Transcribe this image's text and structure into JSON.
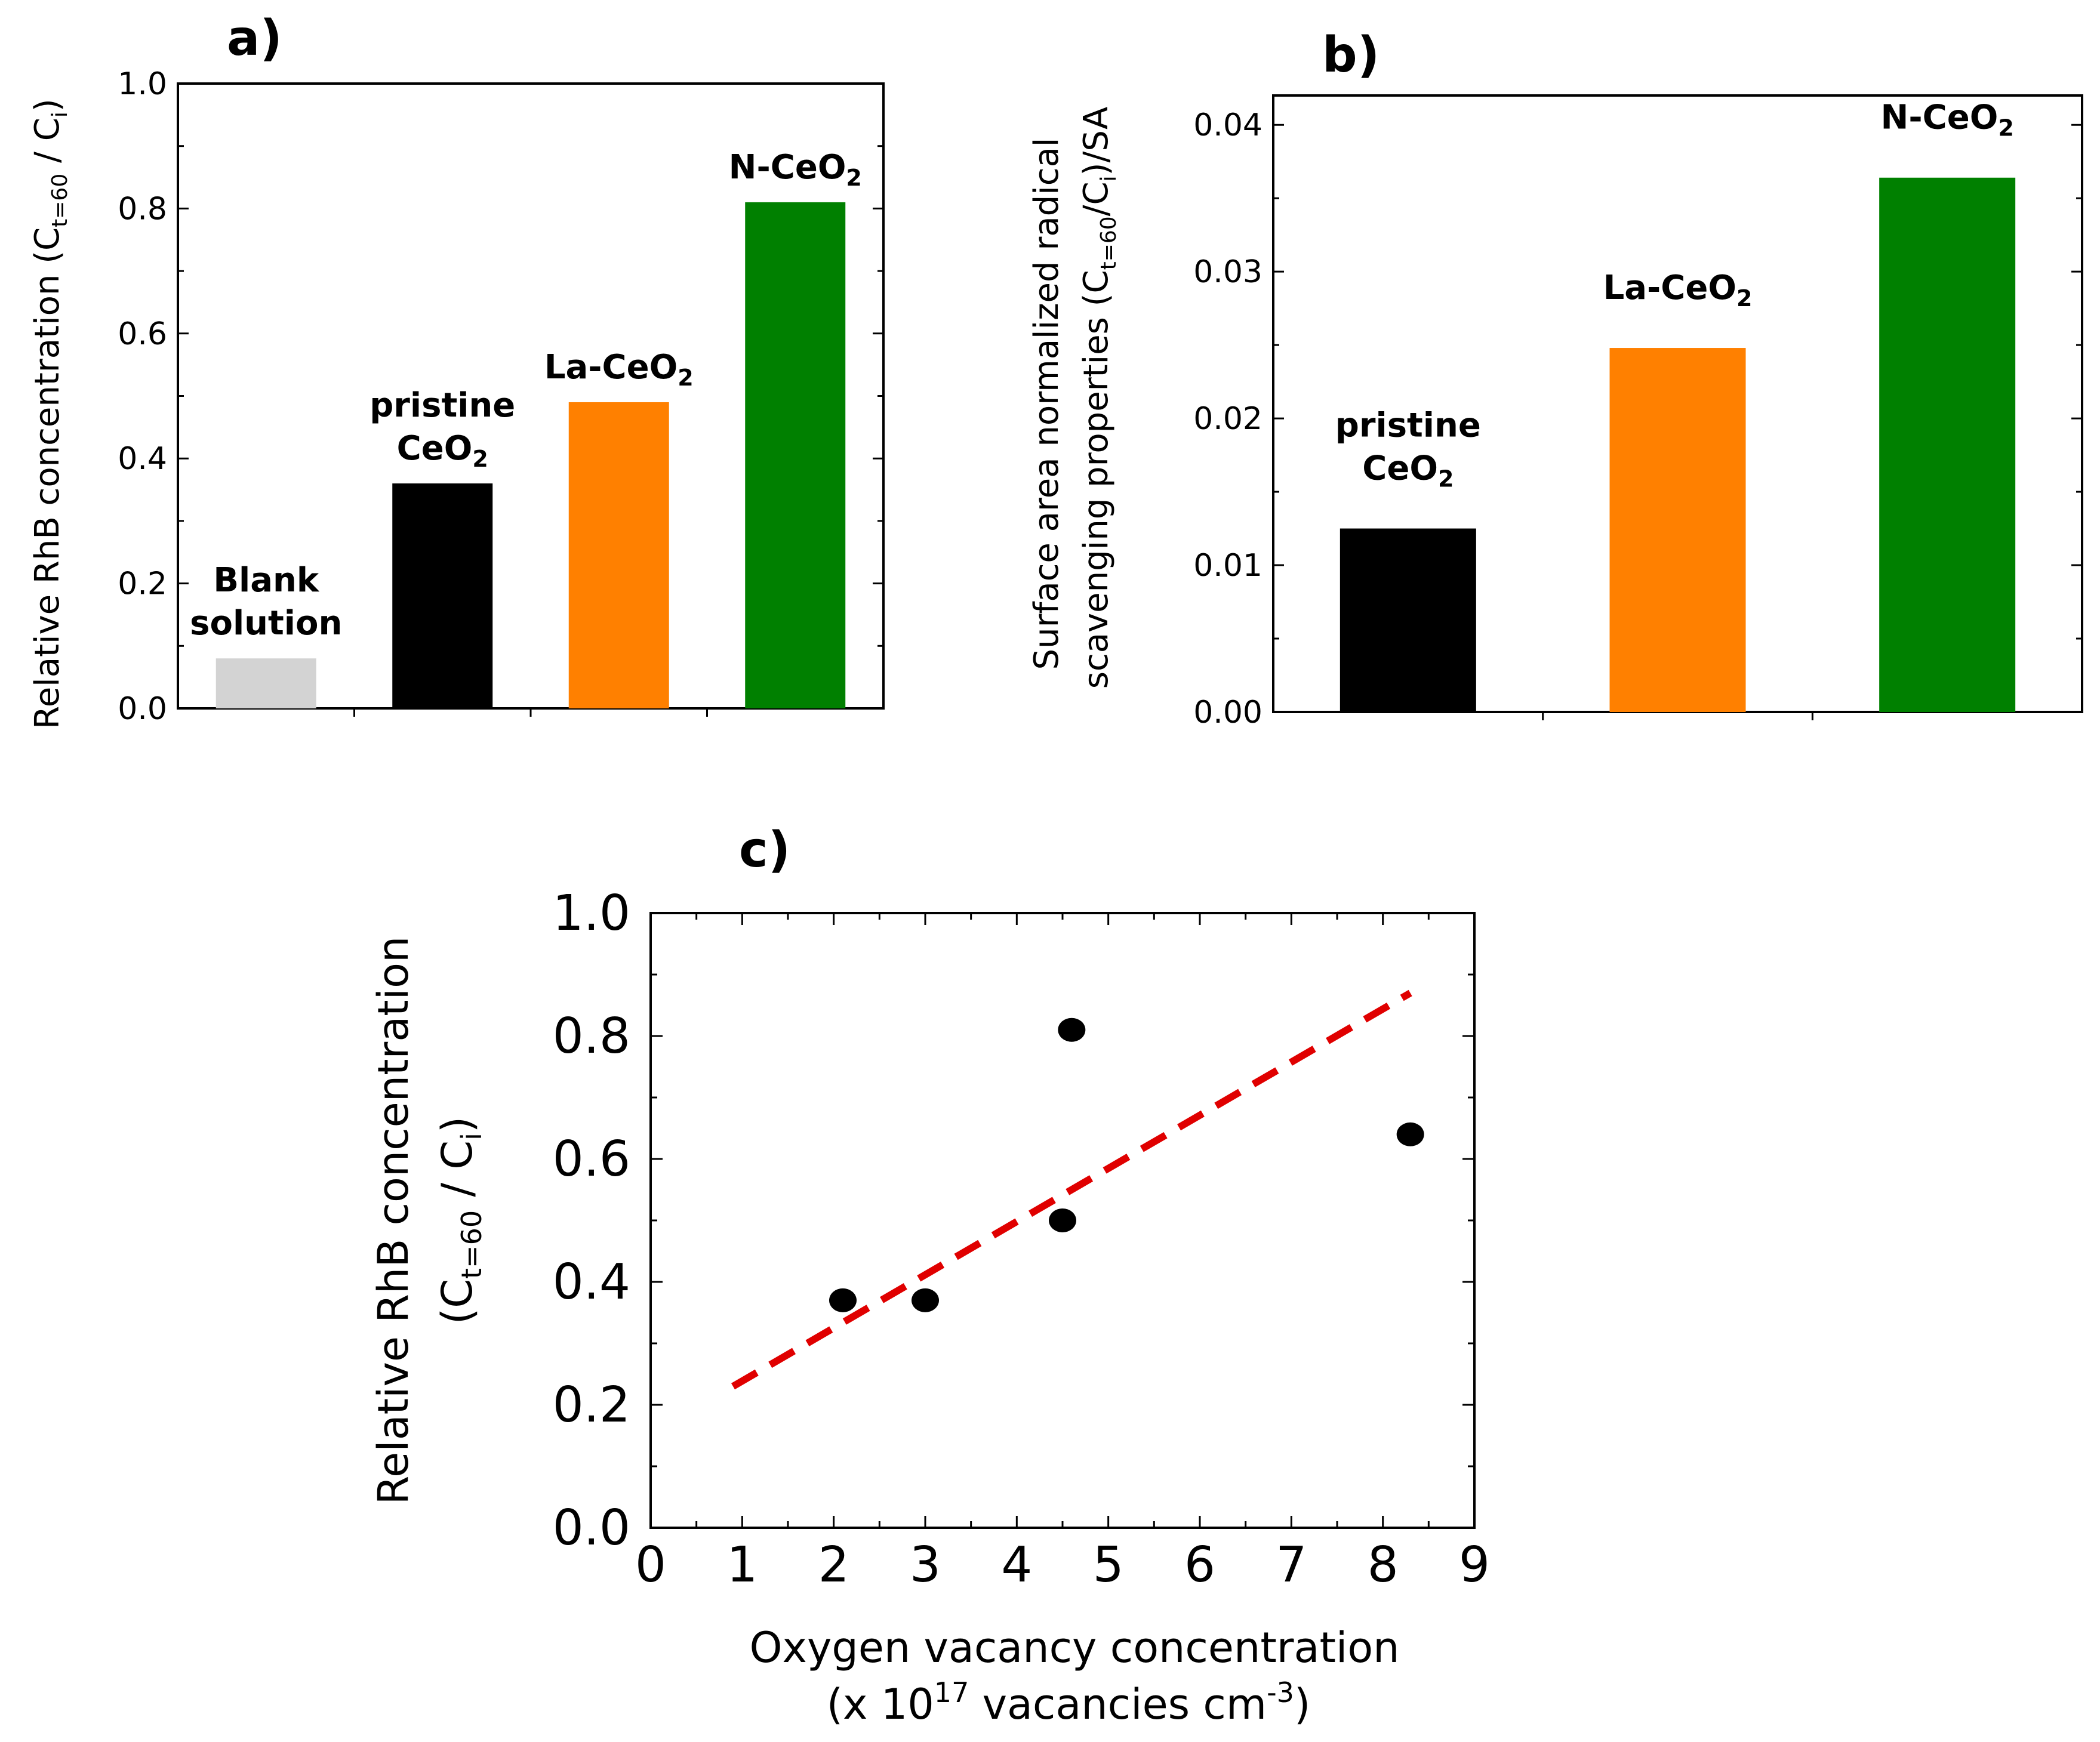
{
  "chart_data": [
    {
      "panel": "a)",
      "type": "bar",
      "ylabel": {
        "base": "Relative RhB concentration (C",
        "sub": "t=60",
        "mid": " / C",
        "sub2": "i",
        "end": ")"
      },
      "ylim": [
        0,
        1.0
      ],
      "yticks": [
        "0.0",
        "0.2",
        "0.4",
        "0.6",
        "0.8",
        "1.0"
      ],
      "bars": [
        {
          "lines": [
            {
              "text": "Blank"
            },
            {
              "text": "solution"
            }
          ],
          "value": 0.08,
          "color": "#d3d3d3"
        },
        {
          "lines": [
            {
              "text": "pristine"
            },
            {
              "text": "CeO",
              "sub": "2"
            }
          ],
          "value": 0.36,
          "color": "#000000"
        },
        {
          "lines": [
            {
              "text": "La-CeO",
              "sub": "2"
            }
          ],
          "value": 0.49,
          "color": "#ff8000"
        },
        {
          "lines": [
            {
              "text": "N-CeO",
              "sub": "2"
            }
          ],
          "value": 0.81,
          "color": "#008000"
        }
      ]
    },
    {
      "panel": "b)",
      "type": "bar",
      "ylabel_line1": "Surface area normalized radical",
      "ylabel_line2": {
        "base": "scavenging properties (C",
        "sub": "t=60",
        "mid": "/C",
        "sub2": "i",
        "end": ")/SA"
      },
      "ylim": [
        0,
        0.042
      ],
      "yticks": [
        "0.00",
        "0.01",
        "0.02",
        "0.03",
        "0.04"
      ],
      "bars": [
        {
          "lines": [
            {
              "text": "pristine"
            },
            {
              "text": "CeO",
              "sub": "2"
            }
          ],
          "value": 0.0125,
          "color": "#000000"
        },
        {
          "lines": [
            {
              "text": "La-CeO",
              "sub": "2"
            }
          ],
          "value": 0.0248,
          "color": "#ff8000"
        },
        {
          "lines": [
            {
              "text": "N-CeO",
              "sub": "2"
            }
          ],
          "value": 0.0364,
          "color": "#008000"
        }
      ]
    },
    {
      "panel": "c)",
      "type": "scatter",
      "xlabel_line1": "Oxygen vacancy concentration",
      "xlabel_line2": {
        "pre": "(x 10",
        "sup": "17",
        "mid": " vacancies cm",
        "sup2": "-3",
        "end": ")"
      },
      "ylabel_line1": "Relative RhB concentration",
      "ylabel_line2": {
        "pre": "(C",
        "sub": "t=60",
        "mid": " / C",
        "sub2": "i",
        "end": ")"
      },
      "xlim": [
        0,
        9
      ],
      "ylim": [
        0,
        1.0
      ],
      "xticks": [
        "0",
        "1",
        "2",
        "3",
        "4",
        "5",
        "6",
        "7",
        "8",
        "9"
      ],
      "yticks": [
        "0.0",
        "0.2",
        "0.4",
        "0.6",
        "0.8",
        "1.0"
      ],
      "points": [
        {
          "x": 2.1,
          "y": 0.37
        },
        {
          "x": 3.0,
          "y": 0.37
        },
        {
          "x": 4.5,
          "y": 0.5
        },
        {
          "x": 4.6,
          "y": 0.81
        },
        {
          "x": 8.3,
          "y": 0.64
        }
      ],
      "fit_line": {
        "x": [
          0.9,
          8.3
        ],
        "y": [
          0.23,
          0.87
        ],
        "color": "#e00000"
      }
    }
  ]
}
